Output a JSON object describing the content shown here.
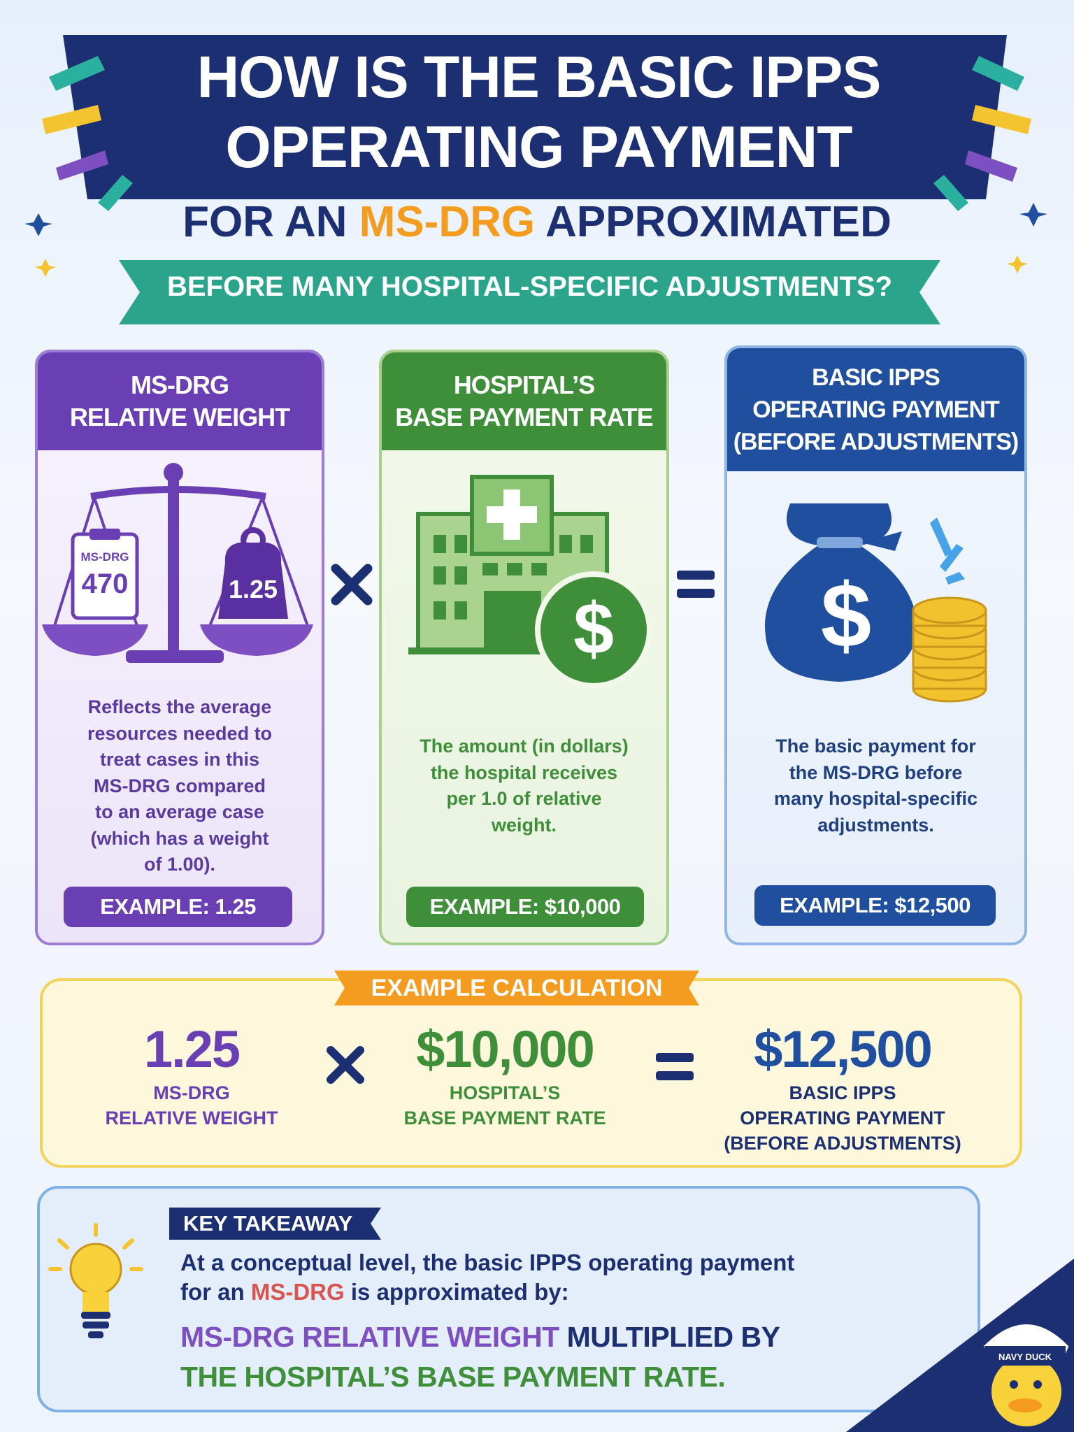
{
  "header": {
    "title_lines": [
      "HOW IS THE BASIC IPPS",
      "OPERATING PAYMENT"
    ],
    "subtitle_parts": [
      "FOR AN ",
      "MS-DRG",
      " APPROXIMATED"
    ],
    "ribbon": "BEFORE MANY HOSPITAL-SPECIFIC ADJUSTMENTS?"
  },
  "cards": [
    {
      "title_lines": [
        "MS-DRG",
        "RELATIVE WEIGHT"
      ],
      "icon_texts": [
        "MS-DRG",
        "470",
        "1.25"
      ],
      "description": [
        "Reflects the average",
        "resources needed to",
        "treat cases in this",
        "MS-DRG compared",
        "to an average case",
        "(which has a weight",
        "of 1.00)."
      ],
      "example": "EXAMPLE: 1.25"
    },
    {
      "title_lines": [
        "HOSPITAL’S",
        "BASE PAYMENT RATE"
      ],
      "description": [
        "The amount (in dollars)",
        "the hospital receives",
        "per 1.0 of relative",
        "weight."
      ],
      "example": "EXAMPLE: $10,000"
    },
    {
      "title_lines": [
        "BASIC IPPS",
        "OPERATING PAYMENT",
        "(BEFORE ADJUSTMENTS)"
      ],
      "description": [
        "The basic payment for",
        "the MS-DRG before",
        "many hospital-specific",
        "adjustments."
      ],
      "example": "EXAMPLE: $12,500"
    }
  ],
  "calculation": {
    "label": "EXAMPLE CALCULATION",
    "terms": [
      {
        "value": "1.25",
        "label_lines": [
          "MS-DRG",
          "RELATIVE WEIGHT"
        ]
      },
      {
        "value": "$10,000",
        "label_lines": [
          "HOSPITAL’S",
          "BASE PAYMENT RATE"
        ]
      },
      {
        "value": "$12,500",
        "label_lines": [
          "BASIC IPPS",
          "OPERATING PAYMENT",
          "(BEFORE ADJUSTMENTS)"
        ]
      }
    ]
  },
  "takeaway": {
    "tag": "KEY TAKEAWAY",
    "line1": "At a conceptual level, the basic IPPS operating payment",
    "line2_parts": [
      "for an ",
      "MS-DRG",
      " is approximated by:"
    ],
    "formula_line1_parts": [
      "MS-DRG RELATIVE WEIGHT",
      " MULTIPLIED BY"
    ],
    "formula_line2": "THE HOSPITAL’S BASE PAYMENT RATE."
  },
  "mascot": {
    "label": "NAVY DUCK"
  }
}
